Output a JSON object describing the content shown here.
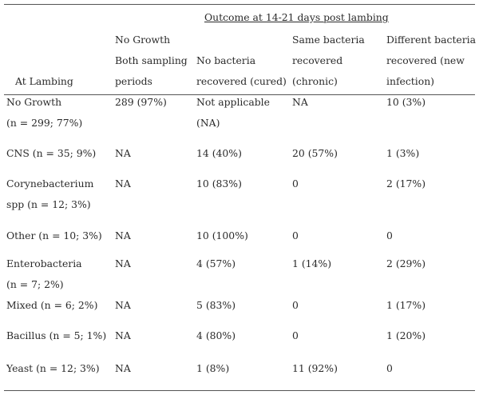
{
  "header": {
    "outcome_title": "Outcome at 14-21 days post lambing",
    "col0": "At Lambing",
    "col1": [
      "No Growth",
      "Both sampling",
      "periods"
    ],
    "col2": [
      "No bacteria",
      "recovered (cured)"
    ],
    "col3": [
      "Same bacteria",
      "recovered",
      "(chronic)"
    ],
    "col4": [
      "Different bacteria",
      "recovered (new",
      "infection)"
    ]
  },
  "rows": [
    {
      "label": [
        "No Growth",
        "(n = 299; 77%)"
      ],
      "c1": "289 (97%)",
      "c2": [
        "Not applicable",
        "(NA)"
      ],
      "c3": "NA",
      "c4": "10 (3%)"
    },
    {
      "label": [
        "CNS (n = 35; 9%)"
      ],
      "c1": "NA",
      "c2": [
        "14 (40%)"
      ],
      "c3": "20 (57%)",
      "c4": "1 (3%)"
    },
    {
      "label": [
        "Corynebacterium",
        "spp (n = 12; 3%)"
      ],
      "c1": "NA",
      "c2": [
        "10 (83%)"
      ],
      "c3": "0",
      "c4": "2 (17%)"
    },
    {
      "label": [
        "Other (n = 10; 3%)"
      ],
      "c1": "NA",
      "c2": [
        "10 (100%)"
      ],
      "c3": "0",
      "c4": "0"
    },
    {
      "label": [
        "Enterobacteria",
        "(n = 7; 2%)"
      ],
      "c1": "NA",
      "c2": [
        "4 (57%)"
      ],
      "c3": "1 (14%)",
      "c4": "2 (29%)"
    },
    {
      "label": [
        "Mixed (n = 6; 2%)"
      ],
      "c1": "NA",
      "c2": [
        "5 (83%)"
      ],
      "c3": "0",
      "c4": "1 (17%)"
    },
    {
      "label": [
        "Bacillus (n = 5; 1%)"
      ],
      "c1": "NA",
      "c2": [
        "4 (80%)"
      ],
      "c3": "0",
      "c4": "1 (20%)"
    },
    {
      "label": [
        "Yeast (n = 12; 3%)"
      ],
      "c1": "NA",
      "c2": [
        "1 (8%)"
      ],
      "c3": "11 (92%)",
      "c4": "0"
    }
  ]
}
